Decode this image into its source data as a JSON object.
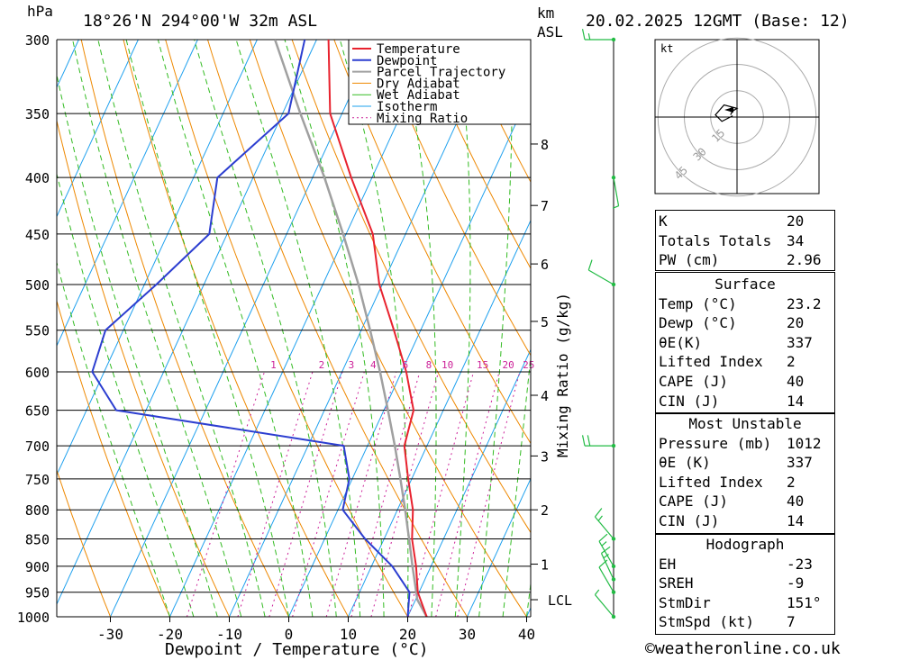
{
  "chart_data": {
    "type": "skew-t log-p sounding",
    "title": "18°26'N 294°00'W 32m ASL",
    "datetime": "20.02.2025 12GMT (Base: 12)",
    "ylabel_left": "hPa",
    "ylabel_right_top": "km",
    "ylabel_right_sub": "ASL",
    "xlabel": "Dewpoint / Temperature (°C)",
    "mixing_ratio_label": "Mixing Ratio (g/kg)",
    "pressure_ticks": [
      300,
      350,
      400,
      450,
      500,
      550,
      600,
      650,
      700,
      750,
      800,
      850,
      900,
      950,
      1000
    ],
    "temperature_ticks": [
      -30,
      -20,
      -10,
      0,
      10,
      20,
      30,
      40
    ],
    "height_ticks": [
      {
        "km": "8",
        "p": 373
      },
      {
        "km": "7",
        "p": 424
      },
      {
        "km": "6",
        "p": 479
      },
      {
        "km": "5",
        "p": 540
      },
      {
        "km": "4",
        "p": 630
      },
      {
        "km": "3",
        "p": 715
      },
      {
        "km": "2",
        "p": 800
      },
      {
        "km": "1",
        "p": 896
      },
      {
        "km": "LCL",
        "p": 965
      }
    ],
    "mixing_ratio_values": [
      "1",
      "2",
      "3",
      "4",
      "6",
      "8",
      "10",
      "15",
      "20",
      "25"
    ],
    "legend": [
      "Temperature",
      "Dewpoint",
      "Parcel Trajectory",
      "Dry Adiabat",
      "Wet Adiabat",
      "Isotherm",
      "Mixing Ratio"
    ],
    "colors": {
      "temperature": "#e8222e",
      "dewpoint": "#2c3ed0",
      "parcel": "#a0a0a0",
      "dry_adiabat": "#ee8800",
      "wet_adiabat": "#33bb22",
      "isotherm": "#1ea0ee",
      "mixing_ratio": "#cc2299",
      "wind": "#22bb44"
    },
    "temperature_profile": [
      [
        1000,
        23.2
      ],
      [
        950,
        19.8
      ],
      [
        900,
        17.5
      ],
      [
        850,
        14.7
      ],
      [
        800,
        12.6
      ],
      [
        750,
        9.4
      ],
      [
        700,
        6.2
      ],
      [
        650,
        5.0
      ],
      [
        600,
        0.8
      ],
      [
        550,
        -4.5
      ],
      [
        500,
        -10.5
      ],
      [
        450,
        -15.5
      ],
      [
        400,
        -23.5
      ],
      [
        350,
        -32.0
      ],
      [
        300,
        -38.0
      ]
    ],
    "dewpoint_profile": [
      [
        1000,
        20.0
      ],
      [
        950,
        18.4
      ],
      [
        900,
        13.5
      ],
      [
        850,
        6.8
      ],
      [
        800,
        0.8
      ],
      [
        750,
        -0.5
      ],
      [
        700,
        -4.0
      ],
      [
        650,
        -45.0
      ],
      [
        600,
        -52.0
      ],
      [
        550,
        -53.0
      ],
      [
        500,
        -48.0
      ],
      [
        450,
        -43.0
      ],
      [
        400,
        -46.0
      ],
      [
        350,
        -39.0
      ],
      [
        300,
        -42.0
      ]
    ],
    "parcel_profile": [
      [
        1000,
        23.2
      ],
      [
        965,
        20.3
      ],
      [
        900,
        16.9
      ],
      [
        850,
        14.2
      ],
      [
        800,
        11.3
      ],
      [
        750,
        8.1
      ],
      [
        700,
        4.6
      ],
      [
        650,
        0.7
      ],
      [
        600,
        -3.6
      ],
      [
        550,
        -8.5
      ],
      [
        500,
        -14.0
      ],
      [
        450,
        -20.5
      ],
      [
        400,
        -28.0
      ],
      [
        350,
        -37.0
      ],
      [
        300,
        -47.0
      ]
    ],
    "wind_barbs": [
      {
        "p": 1000,
        "dir": 320,
        "kt": 7
      },
      {
        "p": 950,
        "dir": 330,
        "kt": 10
      },
      {
        "p": 925,
        "dir": 335,
        "kt": 15
      },
      {
        "p": 900,
        "dir": 330,
        "kt": 15
      },
      {
        "p": 850,
        "dir": 320,
        "kt": 15
      },
      {
        "p": 700,
        "dir": 270,
        "kt": 20
      },
      {
        "p": 500,
        "dir": 300,
        "kt": 10
      },
      {
        "p": 400,
        "dir": 170,
        "kt": 5
      },
      {
        "p": 300,
        "dir": 270,
        "kt": 15
      }
    ],
    "hodograph": {
      "unit": "kt",
      "ring_labels": [
        "15",
        "30",
        "45"
      ],
      "points": [
        [
          -1.5,
          0.5
        ],
        [
          -1.0,
          1.4
        ],
        [
          0.0,
          2.0
        ],
        [
          -3.0,
          2.8
        ],
        [
          -5.0,
          0.5
        ],
        [
          -3.5,
          -1.0
        ],
        [
          -1.0,
          0.3
        ]
      ]
    }
  },
  "indices": [
    {
      "label": "K",
      "value": "20"
    },
    {
      "label": "Totals Totals",
      "value": "34"
    },
    {
      "label": "PW (cm)",
      "value": "2.96"
    }
  ],
  "surface": {
    "title": "Surface",
    "rows": [
      {
        "label": "Temp (°C)",
        "value": "23.2"
      },
      {
        "label": "Dewp (°C)",
        "value": "20"
      },
      {
        "label": "θE(K)",
        "value": "337"
      },
      {
        "label": "Lifted Index",
        "value": "2"
      },
      {
        "label": "CAPE (J)",
        "value": "40"
      },
      {
        "label": "CIN (J)",
        "value": "14"
      }
    ]
  },
  "most_unstable": {
    "title": "Most Unstable",
    "rows": [
      {
        "label": "Pressure (mb)",
        "value": "1012"
      },
      {
        "label": "θE (K)",
        "value": "337"
      },
      {
        "label": "Lifted Index",
        "value": "2"
      },
      {
        "label": "CAPE (J)",
        "value": "40"
      },
      {
        "label": "CIN (J)",
        "value": "14"
      }
    ]
  },
  "hodograph_stats": {
    "title": "Hodograph",
    "rows": [
      {
        "label": "EH",
        "value": "-23"
      },
      {
        "label": "SREH",
        "value": "-9"
      },
      {
        "label": "StmDir",
        "value": "151°"
      },
      {
        "label": "StmSpd (kt)",
        "value": "7"
      }
    ]
  },
  "footer": {
    "copyright_icon": "©",
    "site": "weatheronline.co.uk"
  }
}
